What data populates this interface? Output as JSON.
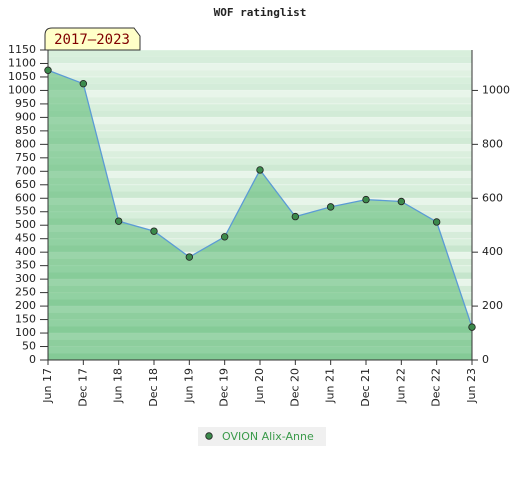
{
  "chart_data": {
    "type": "area",
    "title": "WOF ratinglist",
    "annotation": "2017–2023",
    "categories": [
      "Jun 17",
      "Dec 17",
      "Jun 18",
      "Dec 18",
      "Jun 19",
      "Dec 19",
      "Jun 20",
      "Dec 20",
      "Jun 21",
      "Dec 21",
      "Jun 22",
      "Dec 22",
      "Jun 23"
    ],
    "series": [
      {
        "name": "OVION Alix-Anne",
        "color": "#3cae5c",
        "line_color": "#5b9bd5",
        "marker_color": "#3c8a4c",
        "values": [
          1075,
          1025,
          515,
          478,
          382,
          457,
          705,
          532,
          568,
          595,
          588,
          512,
          122
        ]
      }
    ],
    "ylim": [
      0,
      1150
    ],
    "yticks": [
      0,
      50,
      100,
      150,
      200,
      250,
      300,
      350,
      400,
      450,
      500,
      550,
      600,
      650,
      700,
      750,
      800,
      850,
      900,
      950,
      1000,
      1050,
      1100,
      1150
    ],
    "y2lim": [
      0,
      1150
    ],
    "y2ticks": [
      0,
      200,
      400,
      600,
      800,
      1000
    ],
    "grid": true,
    "legend": "bottom"
  }
}
